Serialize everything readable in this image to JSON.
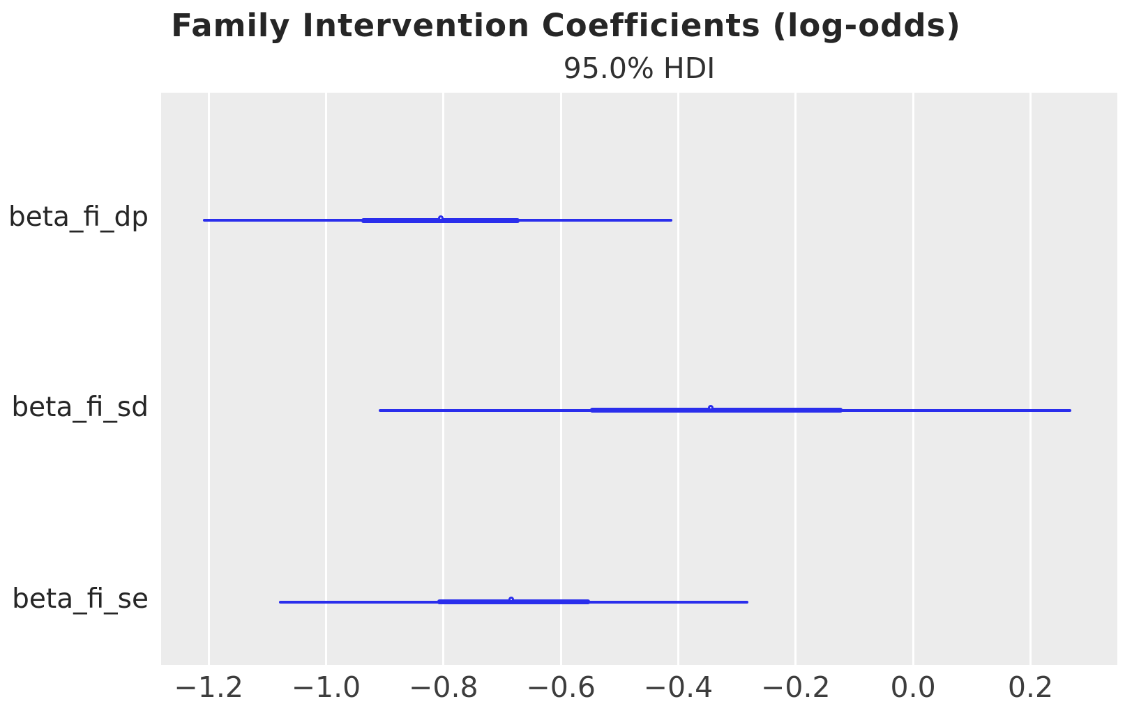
{
  "chart_data": {
    "type": "forest",
    "title": "Family Intervention Coefficients (log-odds)",
    "subtitle": "95.0% HDI",
    "hdi_prob": "95.0%",
    "xlabel": "",
    "ylabel": "",
    "xlim": [
      -1.281,
      0.348
    ],
    "x_ticks": [
      -1.2,
      -1.0,
      -0.8,
      -0.6,
      -0.4,
      -0.2,
      0.0,
      0.2
    ],
    "x_tick_labels": [
      "−1.2",
      "−1.0",
      "−0.8",
      "−0.6",
      "−0.4",
      "−0.2",
      "0.0",
      "0.2"
    ],
    "grid": "vertical-only",
    "legend": "none",
    "series": [
      {
        "label": "beta_fi_dp",
        "hdi_low": -1.21,
        "hdi_high": -0.41,
        "quartile_low": -0.94,
        "quartile_high": -0.67,
        "median": -0.8
      },
      {
        "label": "beta_fi_sd",
        "hdi_low": -0.91,
        "hdi_high": 0.27,
        "quartile_low": -0.55,
        "quartile_high": -0.12,
        "median": -0.34
      },
      {
        "label": "beta_fi_se",
        "hdi_low": -1.08,
        "hdi_high": -0.28,
        "quartile_low": -0.81,
        "quartile_high": -0.55,
        "median": -0.68
      }
    ],
    "colors": {
      "line": "#2a2eec",
      "marker_fill": "#ffffff",
      "plot_bg": "#ececec",
      "grid": "#ffffff",
      "title_text": "#262626",
      "tick_text": "#3d3d3d"
    }
  }
}
